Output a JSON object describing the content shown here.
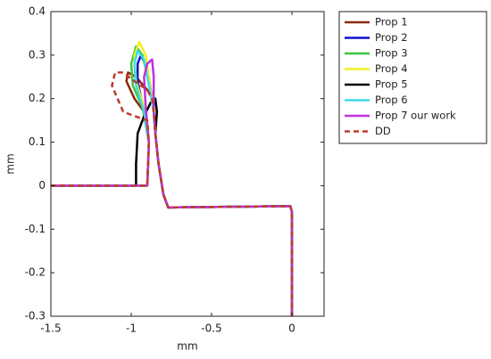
{
  "chart_data": {
    "type": "line",
    "xlabel": "mm",
    "ylabel": "mm",
    "xlim": [
      -1.5,
      0.2
    ],
    "ylim": [
      -0.3,
      0.4
    ],
    "xticks": [
      -1.5,
      -1,
      -0.5,
      0
    ],
    "yticks": [
      -0.3,
      -0.2,
      -0.1,
      0,
      0.1,
      0.2,
      0.3,
      0.4
    ],
    "grid": false,
    "legend": "outside-top-right",
    "series": [
      {
        "name": "Prop 1",
        "color": "#8b2a0e",
        "dashed": false,
        "x": [
          -1.5,
          -0.9,
          -0.89,
          -0.92,
          -0.98,
          -1.03,
          -1.02,
          -0.97,
          -0.9,
          -0.87,
          -0.86,
          -0.85,
          -0.83,
          -0.8,
          -0.77,
          -0.01,
          0,
          0
        ],
        "values": [
          0,
          0,
          0.1,
          0.17,
          0.2,
          0.24,
          0.26,
          0.25,
          0.22,
          0.2,
          0.17,
          0.12,
          0.05,
          -0.02,
          -0.05,
          -0.047,
          -0.06,
          -0.3
        ]
      },
      {
        "name": "Prop 2",
        "color": "#1010d0",
        "dashed": false,
        "x": [
          -1.5,
          -0.9,
          -0.89,
          -0.92,
          -0.96,
          -0.96,
          -0.94,
          -0.9,
          -0.87,
          -0.86,
          -0.85,
          -0.83,
          -0.8,
          -0.77,
          -0.01,
          0,
          0
        ],
        "values": [
          0,
          0,
          0.1,
          0.17,
          0.24,
          0.28,
          0.3,
          0.27,
          0.2,
          0.17,
          0.12,
          0.05,
          -0.02,
          -0.05,
          -0.047,
          -0.06,
          -0.3
        ]
      },
      {
        "name": "Prop 3",
        "color": "#3ec43e",
        "dashed": false,
        "x": [
          -1.5,
          -0.9,
          -0.89,
          -0.93,
          -0.99,
          -1.0,
          -0.97,
          -0.93,
          -0.88,
          -0.86,
          -0.85,
          -0.83,
          -0.8,
          -0.77,
          -0.01,
          0,
          0
        ],
        "values": [
          0,
          0,
          0.1,
          0.18,
          0.23,
          0.28,
          0.32,
          0.3,
          0.22,
          0.17,
          0.12,
          0.05,
          -0.02,
          -0.05,
          -0.047,
          -0.06,
          -0.3
        ]
      },
      {
        "name": "Prop 4",
        "color": "#f0f020",
        "dashed": false,
        "x": [
          -1.5,
          -0.9,
          -0.89,
          -0.92,
          -0.97,
          -0.98,
          -0.95,
          -0.91,
          -0.88,
          -0.86,
          -0.85,
          -0.83,
          -0.8,
          -0.77,
          -0.01,
          0,
          0
        ],
        "values": [
          0,
          0,
          0.1,
          0.18,
          0.24,
          0.3,
          0.33,
          0.3,
          0.22,
          0.17,
          0.12,
          0.05,
          -0.02,
          -0.05,
          -0.047,
          -0.06,
          -0.3
        ]
      },
      {
        "name": "Prop 5",
        "color": "#000000",
        "dashed": false,
        "x": [
          -1.5,
          -0.97,
          -0.97,
          -0.96,
          -0.92,
          -0.88,
          -0.85,
          -0.84,
          -0.85,
          -0.83,
          -0.8,
          -0.77,
          -0.01,
          0,
          0
        ],
        "values": [
          0,
          0,
          0.05,
          0.12,
          0.16,
          0.19,
          0.2,
          0.17,
          0.12,
          0.05,
          -0.02,
          -0.05,
          -0.047,
          -0.06,
          -0.3
        ]
      },
      {
        "name": "Prop 6",
        "color": "#40d8e8",
        "dashed": false,
        "x": [
          -1.5,
          -0.9,
          -0.89,
          -0.92,
          -0.97,
          -0.98,
          -0.96,
          -0.92,
          -0.88,
          -0.86,
          -0.85,
          -0.83,
          -0.8,
          -0.77,
          -0.01,
          0,
          0
        ],
        "values": [
          0,
          0,
          0.1,
          0.17,
          0.23,
          0.28,
          0.31,
          0.29,
          0.21,
          0.17,
          0.12,
          0.05,
          -0.02,
          -0.05,
          -0.047,
          -0.06,
          -0.3
        ]
      },
      {
        "name": "Prop 7 our work",
        "color": "#c030e0",
        "dashed": false,
        "x": [
          -1.5,
          -0.9,
          -0.89,
          -0.91,
          -0.92,
          -0.9,
          -0.87,
          -0.86,
          -0.86,
          -0.85,
          -0.83,
          -0.8,
          -0.77,
          -0.01,
          0,
          0
        ],
        "values": [
          0,
          0,
          0.1,
          0.18,
          0.25,
          0.28,
          0.29,
          0.25,
          0.17,
          0.12,
          0.05,
          -0.02,
          -0.05,
          -0.047,
          -0.06,
          -0.3
        ]
      },
      {
        "name": "DD",
        "color": "#c0392b",
        "dashed": true,
        "x": [
          -1.5,
          -0.9,
          -0.89,
          -0.9,
          -0.98,
          -1.05,
          -1.12,
          -1.1,
          -1.05,
          -0.98,
          -0.9,
          -0.87,
          -0.86,
          -0.85,
          -0.83,
          -0.8,
          -0.77,
          -0.01,
          0,
          0
        ],
        "values": [
          0,
          0,
          0.1,
          0.15,
          0.16,
          0.17,
          0.23,
          0.26,
          0.26,
          0.24,
          0.22,
          0.2,
          0.17,
          0.12,
          0.05,
          -0.02,
          -0.05,
          -0.047,
          -0.06,
          -0.3
        ]
      }
    ]
  }
}
